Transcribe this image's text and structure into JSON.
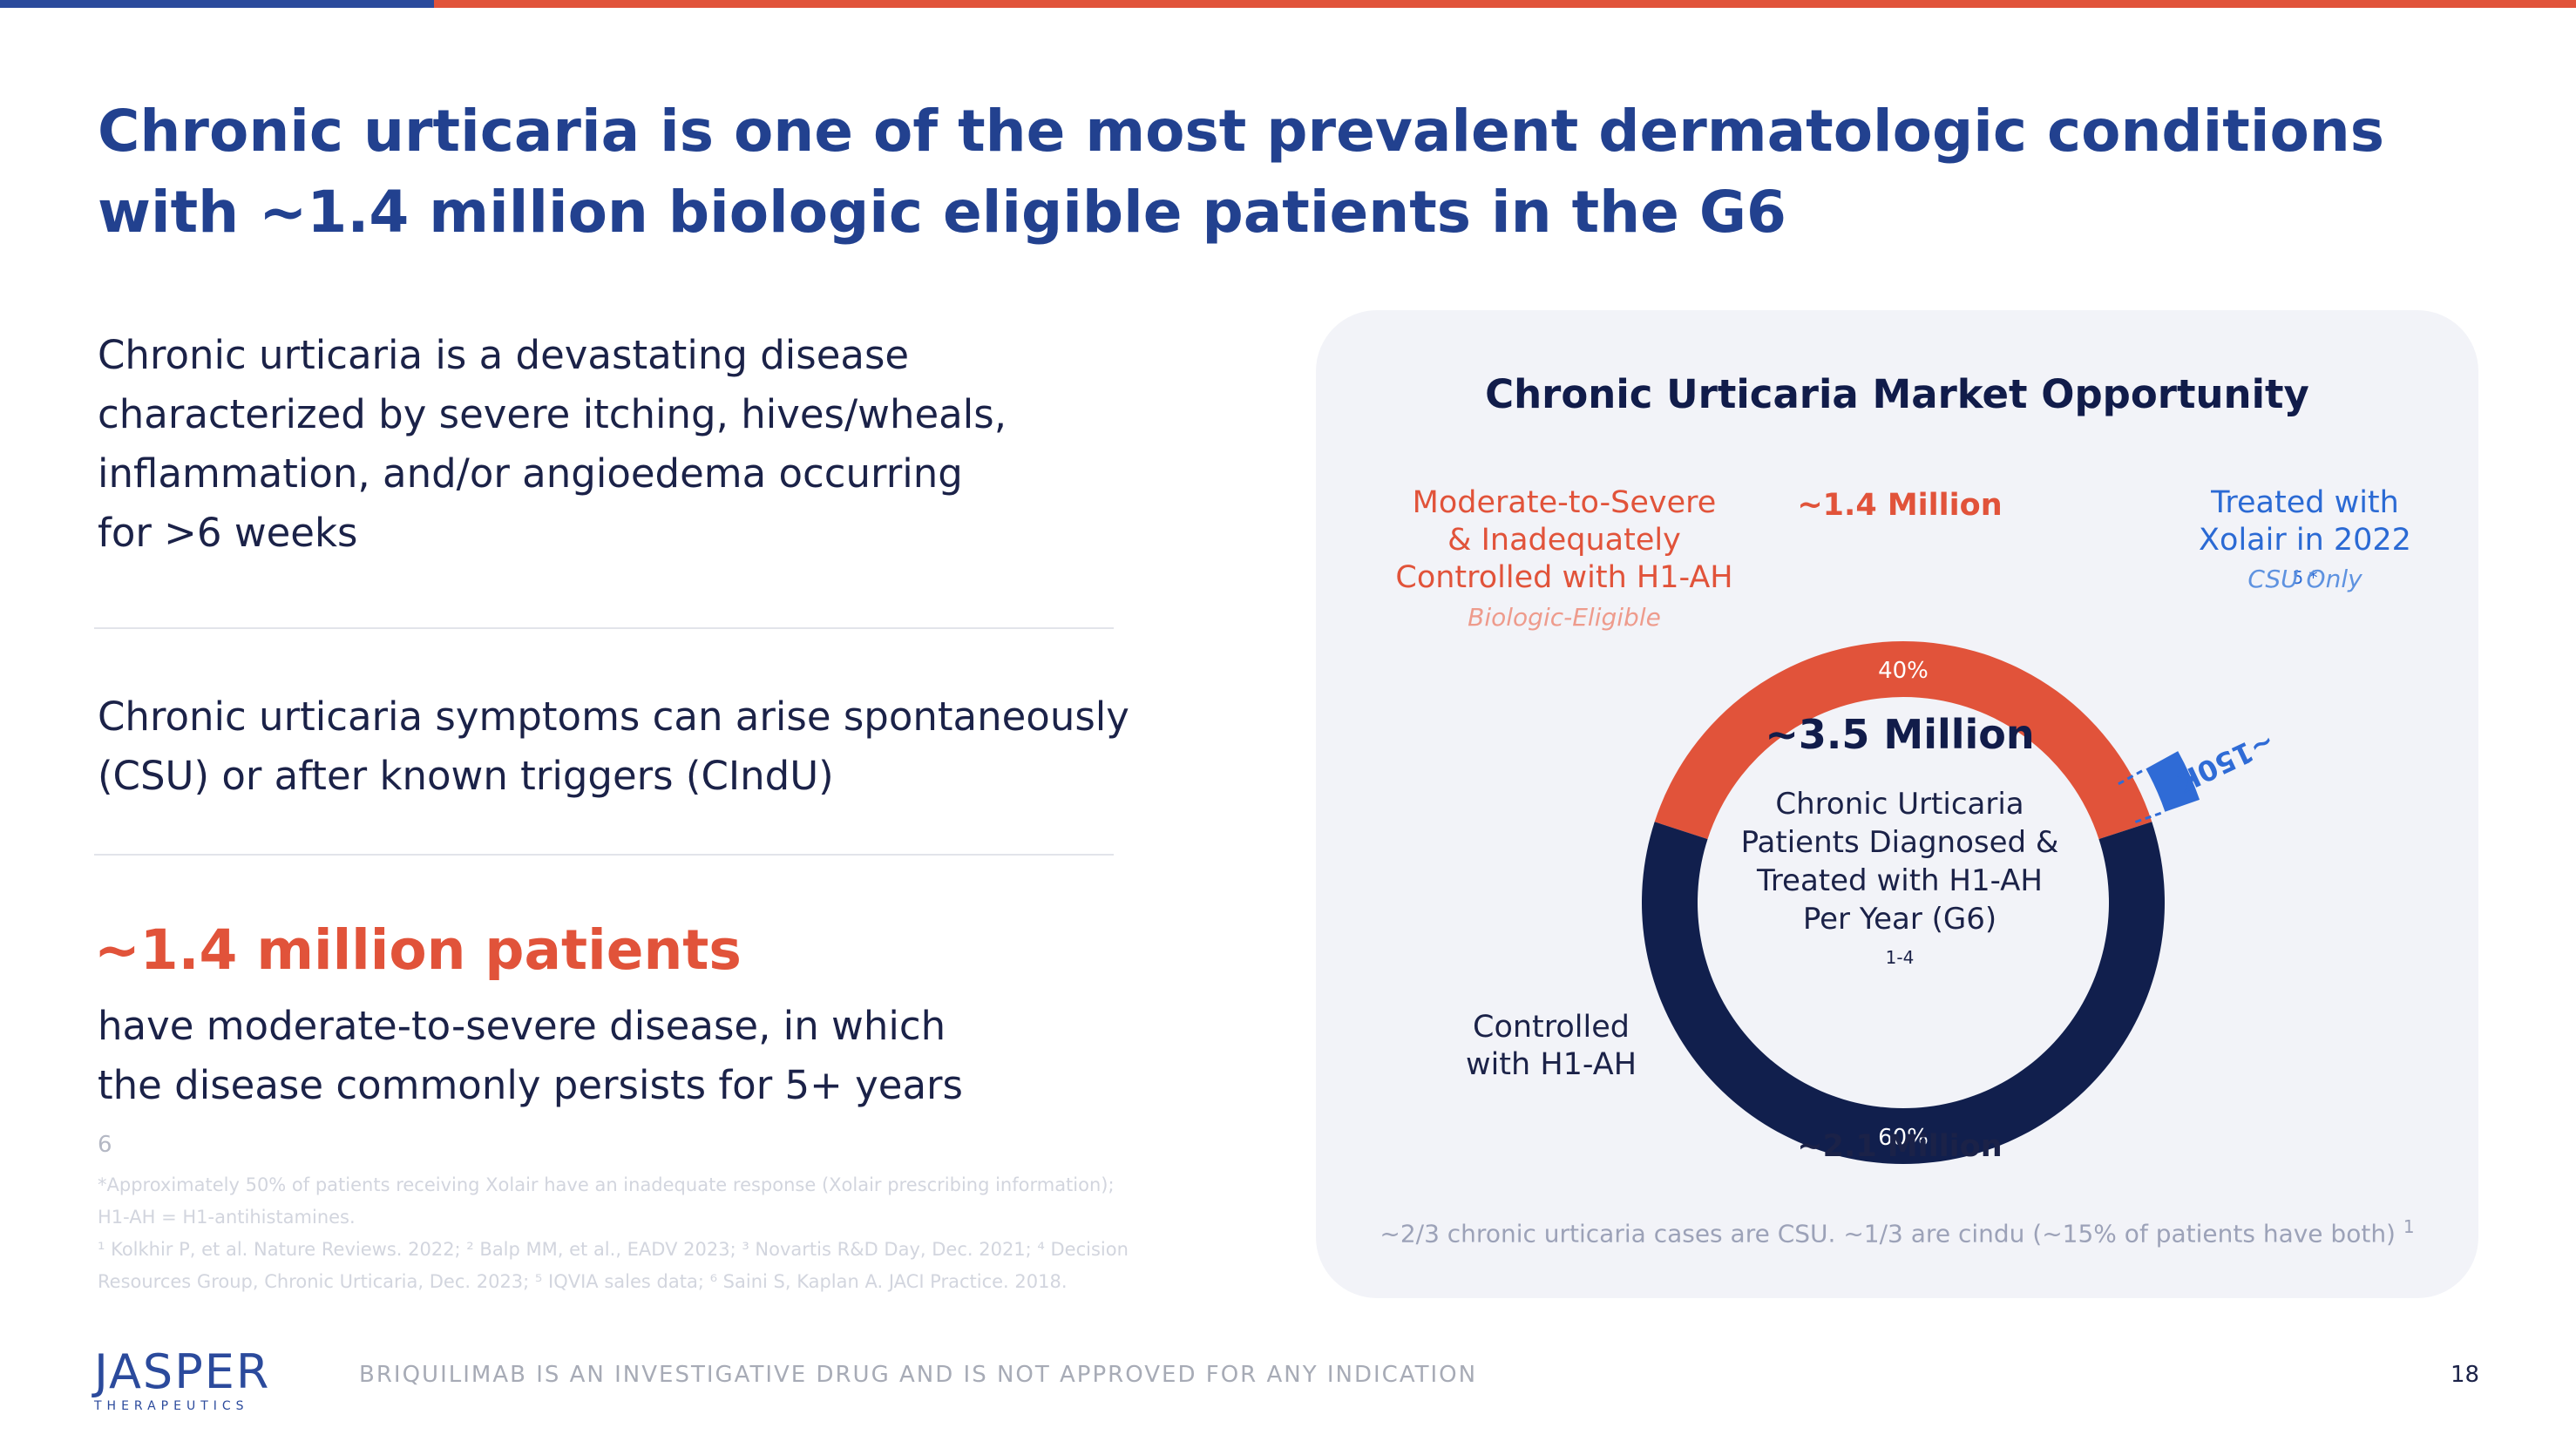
{
  "title": {
    "line1": "Chronic urticaria is one of the most prevalent dermatologic conditions",
    "line2": "with ~1.4 million biologic eligible patients in the G6"
  },
  "left": {
    "para1": [
      "Chronic urticaria is a devastating disease",
      "characterized by severe itching, hives/wheals,",
      "inflammation, and/or angioedema occurring",
      "for >6 weeks"
    ],
    "para2": [
      "Chronic urticaria symptoms can arise spontaneously",
      "(CSU) or after known triggers (CIndU)"
    ],
    "highlight": "~1.4 million patients",
    "para3_line1": "have moderate-to-severe disease, in which",
    "para3_line2": "the disease commonly persists for 5+ years",
    "para3_sup": "6",
    "footnotes": [
      "*Approximately 50% of patients receiving Xolair have an inadequate response (Xolair prescribing information);",
      "H1-AH = H1-antihistamines.",
      "¹ Kolkhir P, et al. Nature Reviews. 2022; ² Balp MM, et al., EADV 2023; ³ Novartis R&D Day, Dec. 2021; ⁴ Decision",
      "Resources Group, Chronic Urticaria, Dec. 2023; ⁵ IQVIA sales data; ⁶ Saini S, Kaplan A. JACI Practice. 2018."
    ]
  },
  "panel": {
    "title": "Chronic Urticaria Market Opportunity",
    "moderate_label": [
      "Moderate-to-Severe",
      "& Inadequately",
      "Controlled with H1-AH"
    ],
    "biologic_label": "Biologic-Eligible",
    "top_value": "~1.4 Million",
    "treated_line1": "Treated with",
    "treated_line2": "Xolair in 2022",
    "treated_sup": "5 *",
    "csu_only": "CSU Only",
    "arc_label": "~150K",
    "center_value": "~3.5 Million",
    "center_text": [
      "Chronic Urticaria",
      "Patients Diagnosed &",
      "Treated with H1-AH"
    ],
    "center_last": "Per Year (G6)",
    "center_sup": "1-4",
    "controlled_label": [
      "Controlled",
      "with H1-AH"
    ],
    "bottom_value": "~2.1 Million",
    "bottom_note": "~2/3 chronic urticaria cases are CSU. ~1/3 are cindu (~15% of patients have both)",
    "bottom_note_sup": "1"
  },
  "chart_data": {
    "type": "pie",
    "categories": [
      "Moderate-to-Severe & Inadequately Controlled with H1-AH",
      "Controlled with H1-AH"
    ],
    "values": [
      40,
      60
    ],
    "value_labels": [
      "40%",
      "60%"
    ],
    "totals": [
      "~1.4 Million",
      "~2.1 Million"
    ],
    "center_total": "~3.5 Million",
    "inset_segment": {
      "label": "~150K",
      "description": "Treated with Xolair in 2022"
    },
    "colors": [
      "#e1533a",
      "#111f4d"
    ],
    "inset_color": "#2f6bd6"
  },
  "footer": {
    "logo": "JASPER",
    "logo_sub": "THERAPEUTICS",
    "disclaimer": "BRIQUILIMAB IS AN INVESTIGATIVE DRUG AND IS NOT APPROVED FOR ANY INDICATION",
    "page": "18"
  },
  "colors": {
    "title": "#22418f",
    "accent": "#e1533a",
    "navy": "#111f4d",
    "blue": "#2f6bd6"
  }
}
